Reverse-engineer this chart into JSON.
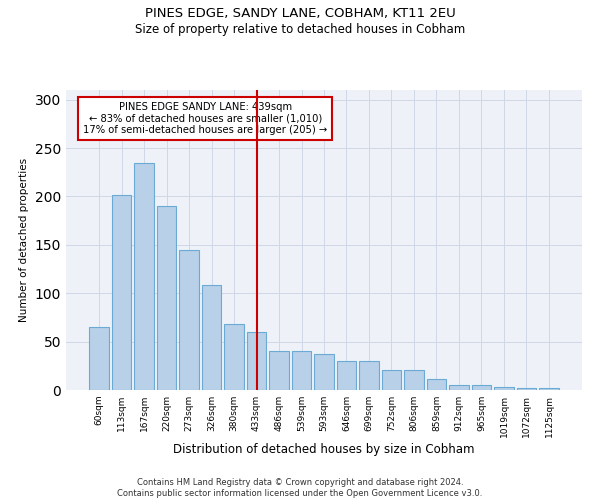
{
  "title": "PINES EDGE, SANDY LANE, COBHAM, KT11 2EU",
  "subtitle": "Size of property relative to detached houses in Cobham",
  "xlabel": "Distribution of detached houses by size in Cobham",
  "ylabel": "Number of detached properties",
  "categories": [
    "60sqm",
    "113sqm",
    "167sqm",
    "220sqm",
    "273sqm",
    "326sqm",
    "380sqm",
    "433sqm",
    "486sqm",
    "539sqm",
    "593sqm",
    "646sqm",
    "699sqm",
    "752sqm",
    "806sqm",
    "859sqm",
    "912sqm",
    "965sqm",
    "1019sqm",
    "1072sqm",
    "1125sqm"
  ],
  "values": [
    65,
    202,
    235,
    190,
    145,
    108,
    68,
    60,
    40,
    40,
    37,
    30,
    30,
    21,
    21,
    11,
    5,
    5,
    3,
    2,
    2
  ],
  "bar_color": "#b8d0e8",
  "bar_edgecolor": "#6aaad4",
  "bar_linewidth": 0.8,
  "ylim": [
    0,
    310
  ],
  "yticks": [
    0,
    50,
    100,
    150,
    200,
    250,
    300
  ],
  "vline_index": 7,
  "vline_color": "#cc0000",
  "annotation_title": "PINES EDGE SANDY LANE: 439sqm",
  "annotation_line2": "← 83% of detached houses are smaller (1,010)",
  "annotation_line3": "17% of semi-detached houses are larger (205) →",
  "annotation_box_color": "#cc0000",
  "annotation_facecolor": "white",
  "grid_color": "#d0d8e8",
  "bg_color": "#eef2f8",
  "footer_line1": "Contains HM Land Registry data © Crown copyright and database right 2024.",
  "footer_line2": "Contains public sector information licensed under the Open Government Licence v3.0."
}
